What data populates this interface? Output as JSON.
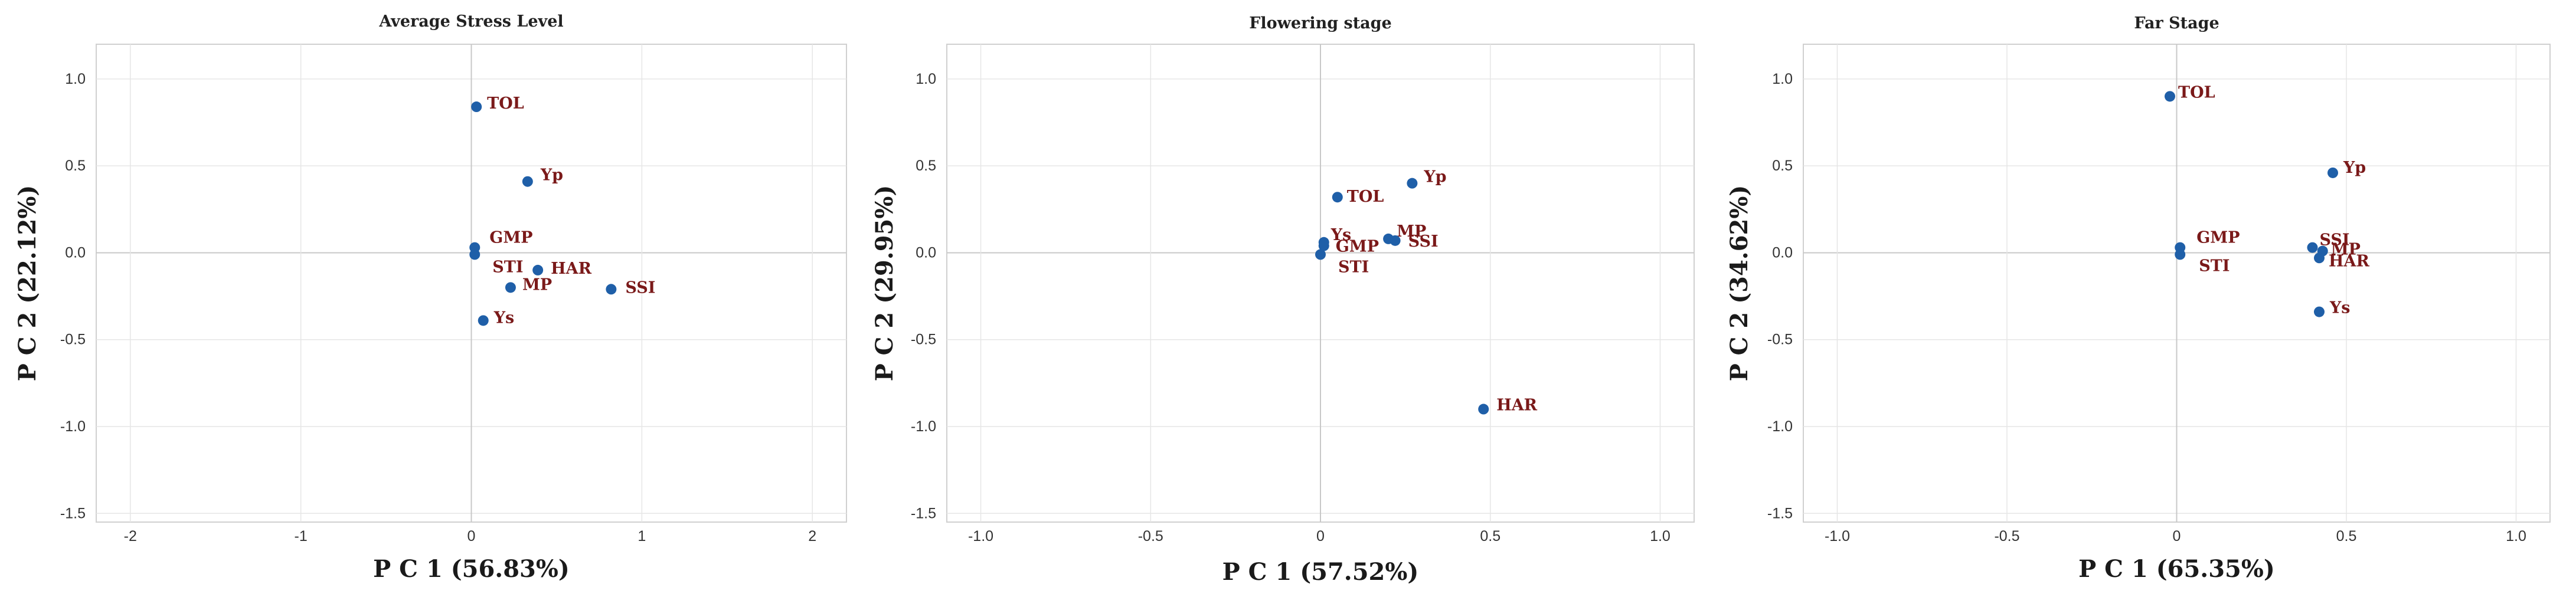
{
  "chart_data": [
    {
      "type": "scatter",
      "title": "Average Stress Level",
      "xlabel": "P C 1 (56.83%)",
      "ylabel": "P C 2 (22.12%)",
      "xlim": [
        -2.2,
        2.2
      ],
      "ylim": [
        -1.55,
        1.2
      ],
      "xticks": [
        -2,
        -1,
        0,
        1,
        2
      ],
      "xtick_labels": [
        "-2",
        "-1",
        "0",
        "1",
        "2"
      ],
      "yticks": [
        1.0,
        0.5,
        0.0,
        -0.5,
        -1.0,
        -1.5
      ],
      "ytick_labels": [
        "1.0",
        "0.5",
        "0.0",
        "-0.5",
        "-1.0",
        "-1.5"
      ],
      "points": [
        {
          "label": "TOL",
          "x": 0.03,
          "y": 0.84
        },
        {
          "label": "Yp",
          "x": 0.33,
          "y": 0.41
        },
        {
          "label": "GMP",
          "x": 0.02,
          "y": 0.03
        },
        {
          "label": "STI",
          "x": 0.02,
          "y": -0.01
        },
        {
          "label": "HAR",
          "x": 0.39,
          "y": -0.1
        },
        {
          "label": "MP",
          "x": 0.23,
          "y": -0.2
        },
        {
          "label": "SSI",
          "x": 0.82,
          "y": -0.21
        },
        {
          "label": "Ys",
          "x": 0.07,
          "y": -0.39
        }
      ]
    },
    {
      "type": "scatter",
      "title": "Flowering stage",
      "xlabel": "P C 1 (57.52%)",
      "ylabel": "P C 2 (29.95%)",
      "xlim": [
        -1.1,
        1.1
      ],
      "ylim": [
        -1.55,
        1.2
      ],
      "xticks": [
        -1.0,
        -0.5,
        0,
        0.5,
        1.0
      ],
      "xtick_labels": [
        "-1.0",
        "-0.5",
        "0",
        "0.5",
        "1.0"
      ],
      "yticks": [
        1.0,
        0.5,
        0.0,
        -0.5,
        -1.0,
        -1.5
      ],
      "ytick_labels": [
        "1.0",
        "0.5",
        "0.0",
        "-0.5",
        "-1.0",
        "-1.5"
      ],
      "points": [
        {
          "label": "Yp",
          "x": 0.27,
          "y": 0.4
        },
        {
          "label": "TOL",
          "x": 0.05,
          "y": 0.32
        },
        {
          "label": "MP",
          "x": 0.2,
          "y": 0.08
        },
        {
          "label": "SSI",
          "x": 0.22,
          "y": 0.07
        },
        {
          "label": "Ys",
          "x": 0.01,
          "y": 0.06
        },
        {
          "label": "GMP",
          "x": 0.01,
          "y": 0.04
        },
        {
          "label": "STI",
          "x": 0.0,
          "y": -0.01
        },
        {
          "label": "HAR",
          "x": 0.48,
          "y": -0.9
        }
      ]
    },
    {
      "type": "scatter",
      "title": "Far Stage",
      "xlabel": "P C 1 (65.35%)",
      "ylabel": "P C 2 (34.62%)",
      "xlim": [
        -1.1,
        1.1
      ],
      "ylim": [
        -1.55,
        1.2
      ],
      "xticks": [
        -1.0,
        -0.5,
        0,
        0.5,
        1.0
      ],
      "xtick_labels": [
        "-1.0",
        "-0.5",
        "0",
        "0.5",
        "1.0"
      ],
      "yticks": [
        1.0,
        0.5,
        0.0,
        -0.5,
        -1.0,
        -1.5
      ],
      "ytick_labels": [
        "1.0",
        "0.5",
        "0.0",
        "-0.5",
        "-1.0",
        "-1.5"
      ],
      "points": [
        {
          "label": "TOL",
          "x": -0.02,
          "y": 0.9
        },
        {
          "label": "Yp",
          "x": 0.46,
          "y": 0.46
        },
        {
          "label": "GMP",
          "x": 0.01,
          "y": 0.03
        },
        {
          "label": "STI",
          "x": 0.01,
          "y": -0.01
        },
        {
          "label": "SSI",
          "x": 0.4,
          "y": 0.03
        },
        {
          "label": "MP",
          "x": 0.43,
          "y": 0.01
        },
        {
          "label": "HAR",
          "x": 0.42,
          "y": -0.03
        },
        {
          "label": "Ys",
          "x": 0.42,
          "y": -0.34
        }
      ]
    }
  ]
}
